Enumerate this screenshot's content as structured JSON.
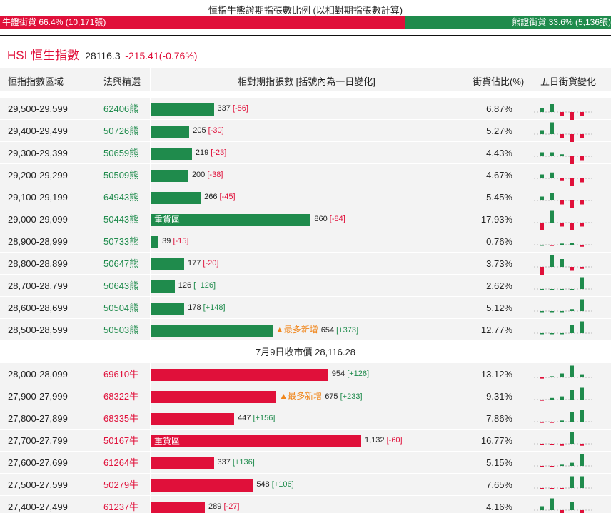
{
  "ratio": {
    "title": "恒指牛熊證期指張數比例 (以相對期指張數計算)",
    "bull_label": "牛證街貨 66.4% (10,171張)",
    "bear_label": "熊證街貨 33.6% (5,136張)",
    "bull_fraction": 0.664,
    "bull_color": "#e0103a",
    "bear_color": "#1f8b4c"
  },
  "index": {
    "name": "HSI 恒生指數",
    "price": "28116.3",
    "change": "-215.41(-0.76%)"
  },
  "headers": {
    "range": "恒指指數區域",
    "pick": "法興精選",
    "contracts": "相對期指張數 [括號內為一日變化]",
    "share": "街貨佔比(%)",
    "five_day": "五日街貨變化"
  },
  "mid_label": "7月9日收市價 28,116.28",
  "bear_rows": [
    {
      "range": "29,500-29,599",
      "code": "62406熊",
      "value": 337,
      "qty": "337",
      "chg": "[-56]",
      "chg_dir": "neg",
      "tag": "",
      "zone": "",
      "pct": "6.87%",
      "spark": [
        1,
        2,
        -1,
        -2,
        -1
      ]
    },
    {
      "range": "29,400-29,499",
      "code": "50726熊",
      "value": 205,
      "qty": "205",
      "chg": "[-30]",
      "chg_dir": "neg",
      "tag": "",
      "zone": "",
      "pct": "5.27%",
      "spark": [
        1,
        3,
        -1,
        -3,
        -1
      ]
    },
    {
      "range": "29,300-29,399",
      "code": "50659熊",
      "value": 219,
      "qty": "219",
      "chg": "[-23]",
      "chg_dir": "neg",
      "tag": "",
      "zone": "",
      "pct": "4.43%",
      "spark": [
        1,
        1,
        0.5,
        -3,
        -1
      ]
    },
    {
      "range": "29,200-29,299",
      "code": "50509熊",
      "value": 200,
      "qty": "200",
      "chg": "[-38]",
      "chg_dir": "neg",
      "tag": "",
      "zone": "",
      "pct": "4.67%",
      "spark": [
        1,
        1.5,
        -0.5,
        -3,
        -1
      ]
    },
    {
      "range": "29,100-29,199",
      "code": "64943熊",
      "value": 266,
      "qty": "266",
      "chg": "[-45]",
      "chg_dir": "neg",
      "tag": "",
      "zone": "",
      "pct": "5.45%",
      "spark": [
        1,
        2,
        -1,
        -3,
        -1
      ]
    },
    {
      "range": "29,000-29,099",
      "code": "50443熊",
      "value": 860,
      "qty": "860",
      "chg": "[-84]",
      "chg_dir": "neg",
      "tag": "",
      "zone": "重貨區",
      "pct": "17.93%",
      "spark": [
        -3,
        3,
        -1,
        -3,
        -1
      ]
    },
    {
      "range": "28,900-28,999",
      "code": "50733熊",
      "value": 39,
      "qty": "39",
      "chg": "[-15]",
      "chg_dir": "neg",
      "tag": "",
      "zone": "",
      "pct": "0.76%",
      "spark": [
        0,
        -0.3,
        0.3,
        0.5,
        -0.5
      ]
    },
    {
      "range": "28,800-28,899",
      "code": "50647熊",
      "value": 177,
      "qty": "177",
      "chg": "[-20]",
      "chg_dir": "neg",
      "tag": "",
      "zone": "",
      "pct": "3.73%",
      "spark": [
        -3,
        3,
        2,
        -1,
        -0.5
      ]
    },
    {
      "range": "28,700-28,799",
      "code": "50643熊",
      "value": 126,
      "qty": "126",
      "chg": "[+126]",
      "chg_dir": "pos",
      "tag": "",
      "zone": "",
      "pct": "2.62%",
      "spark": [
        0,
        0,
        0,
        0,
        3
      ]
    },
    {
      "range": "28,600-28,699",
      "code": "50504熊",
      "value": 178,
      "qty": "178",
      "chg": "[+148]",
      "chg_dir": "pos",
      "tag": "",
      "zone": "",
      "pct": "5.12%",
      "spark": [
        0,
        0,
        0,
        0.5,
        3
      ]
    },
    {
      "range": "28,500-28,599",
      "code": "50503熊",
      "value": 654,
      "qty": "654",
      "chg": "[+373]",
      "chg_dir": "pos",
      "tag": "▲最多新增",
      "zone": "",
      "pct": "12.77%",
      "spark": [
        0,
        0,
        0,
        2,
        3
      ]
    }
  ],
  "bull_rows": [
    {
      "range": "28,000-28,099",
      "code": "69610牛",
      "value": 954,
      "qty": "954",
      "chg": "[+126]",
      "chg_dir": "pos",
      "tag": "",
      "zone": "",
      "pct": "13.12%",
      "spark": [
        -0.3,
        0.3,
        1,
        3,
        0.8
      ]
    },
    {
      "range": "27,900-27,999",
      "code": "68322牛",
      "value": 675,
      "qty": "675",
      "chg": "[+233]",
      "chg_dir": "pos",
      "tag": "▲最多新增",
      "zone": "",
      "pct": "9.31%",
      "spark": [
        -0.3,
        0.4,
        0.8,
        2.5,
        3
      ]
    },
    {
      "range": "27,800-27,899",
      "code": "68335牛",
      "value": 447,
      "qty": "447",
      "chg": "[+156]",
      "chg_dir": "pos",
      "tag": "",
      "zone": "",
      "pct": "7.86%",
      "spark": [
        -0.3,
        -0.3,
        0.3,
        2.5,
        3
      ]
    },
    {
      "range": "27,700-27,799",
      "code": "50167牛",
      "value": 1132,
      "qty": "1,132",
      "chg": "[-60]",
      "chg_dir": "neg",
      "tag": "",
      "zone": "重貨區",
      "pct": "16.77%",
      "spark": [
        -0.3,
        -0.3,
        -0.5,
        3,
        -0.5
      ]
    },
    {
      "range": "27,600-27,699",
      "code": "61264牛",
      "value": 337,
      "qty": "337",
      "chg": "[+136]",
      "chg_dir": "pos",
      "tag": "",
      "zone": "",
      "pct": "5.15%",
      "spark": [
        -0.3,
        -0.3,
        0.3,
        0.8,
        3
      ]
    },
    {
      "range": "27,500-27,599",
      "code": "50279牛",
      "value": 548,
      "qty": "548",
      "chg": "[+106]",
      "chg_dir": "pos",
      "tag": "",
      "zone": "",
      "pct": "7.65%",
      "spark": [
        -0.3,
        -0.3,
        -0.3,
        3,
        3
      ]
    },
    {
      "range": "27,400-27,499",
      "code": "61237牛",
      "value": 289,
      "qty": "289",
      "chg": "[-27]",
      "chg_dir": "neg",
      "tag": "",
      "zone": "",
      "pct": "4.16%",
      "spark": [
        1,
        3,
        -1,
        2,
        -1
      ]
    }
  ]
}
